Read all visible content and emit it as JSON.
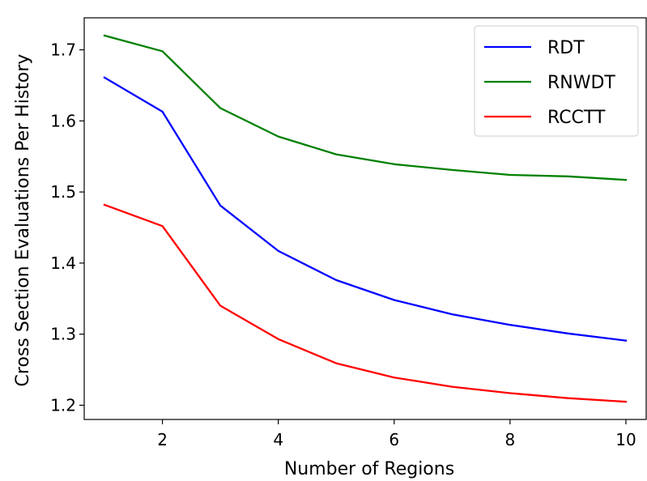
{
  "chart_data": {
    "type": "line",
    "title": "",
    "xlabel": "Number of Regions",
    "ylabel": "Cross Section Evaluations Per History",
    "xlim": [
      0.65,
      10.35
    ],
    "ylim": [
      1.18,
      1.745
    ],
    "xticks": [
      2,
      4,
      6,
      8,
      10
    ],
    "yticks": [
      1.2,
      1.3,
      1.4,
      1.5,
      1.6,
      1.7
    ],
    "ytick_labels": [
      "1.2",
      "1.3",
      "1.4",
      "1.5",
      "1.6",
      "1.7"
    ],
    "grid": false,
    "legend_position": "top-right",
    "x": [
      1,
      2,
      3,
      4,
      5,
      6,
      7,
      8,
      9,
      10
    ],
    "series": [
      {
        "name": "RDT",
        "color": "#0000ff",
        "values": [
          1.661,
          1.613,
          1.481,
          1.417,
          1.376,
          1.348,
          1.328,
          1.313,
          1.301,
          1.291
        ]
      },
      {
        "name": "RNWDT",
        "color": "#008000",
        "values": [
          1.72,
          1.698,
          1.618,
          1.578,
          1.553,
          1.539,
          1.531,
          1.524,
          1.522,
          1.517
        ]
      },
      {
        "name": "RCCTT",
        "color": "#ff0000",
        "values": [
          1.482,
          1.452,
          1.34,
          1.293,
          1.259,
          1.239,
          1.226,
          1.217,
          1.21,
          1.205
        ]
      }
    ]
  }
}
